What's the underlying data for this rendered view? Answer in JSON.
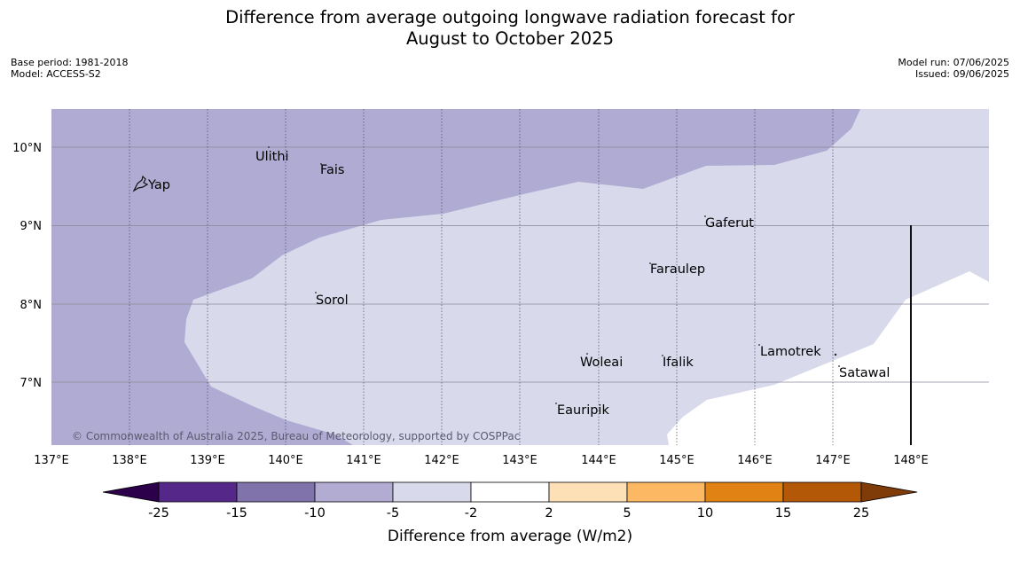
{
  "title_line1": "Difference from average outgoing longwave radiation forecast for",
  "title_line2": "August to October 2025",
  "base_period": "Base period: 1981-2018",
  "model": "Model: ACCESS-S2",
  "model_run": "Model run: 07/06/2025",
  "issued": "Issued: 09/06/2025",
  "copyright": "© Commonwealth of Australia 2025, Bureau of Meteorology, supported by COSPPac",
  "lon_ticks": [
    "137°E",
    "138°E",
    "139°E",
    "140°E",
    "141°E",
    "142°E",
    "143°E",
    "144°E",
    "145°E",
    "146°E",
    "147°E",
    "148°E"
  ],
  "lat_ticks": [
    "10°N",
    "9°N",
    "8°N",
    "7°N"
  ],
  "places": {
    "yap": "Yap",
    "ulithi": "Ulithi",
    "fais": "Fais",
    "gaferut": "Gaferut",
    "faraulep": "Faraulep",
    "sorol": "Sorol",
    "lamotrek": "Lamotrek",
    "woleai": "Woleai",
    "ifalik": "Ifalik",
    "satawal": "Satawal",
    "eauripik": "Eauripik"
  },
  "colorbar": {
    "label": "Difference from average (W/m2)",
    "ticks": [
      "-25",
      "-15",
      "-10",
      "-5",
      "-2",
      "2",
      "5",
      "10",
      "15",
      "25"
    ],
    "colors": {
      "below_min": "#2d004b",
      "c1": "#542788",
      "c2": "#8073ac",
      "c3": "#b2abd2",
      "c4": "#d8daeb",
      "c5": "#ffffff",
      "c6": "#fee0b6",
      "c7": "#fdb863",
      "c8": "#e08214",
      "c9": "#b35806",
      "above_max": "#7f3b08"
    }
  }
}
